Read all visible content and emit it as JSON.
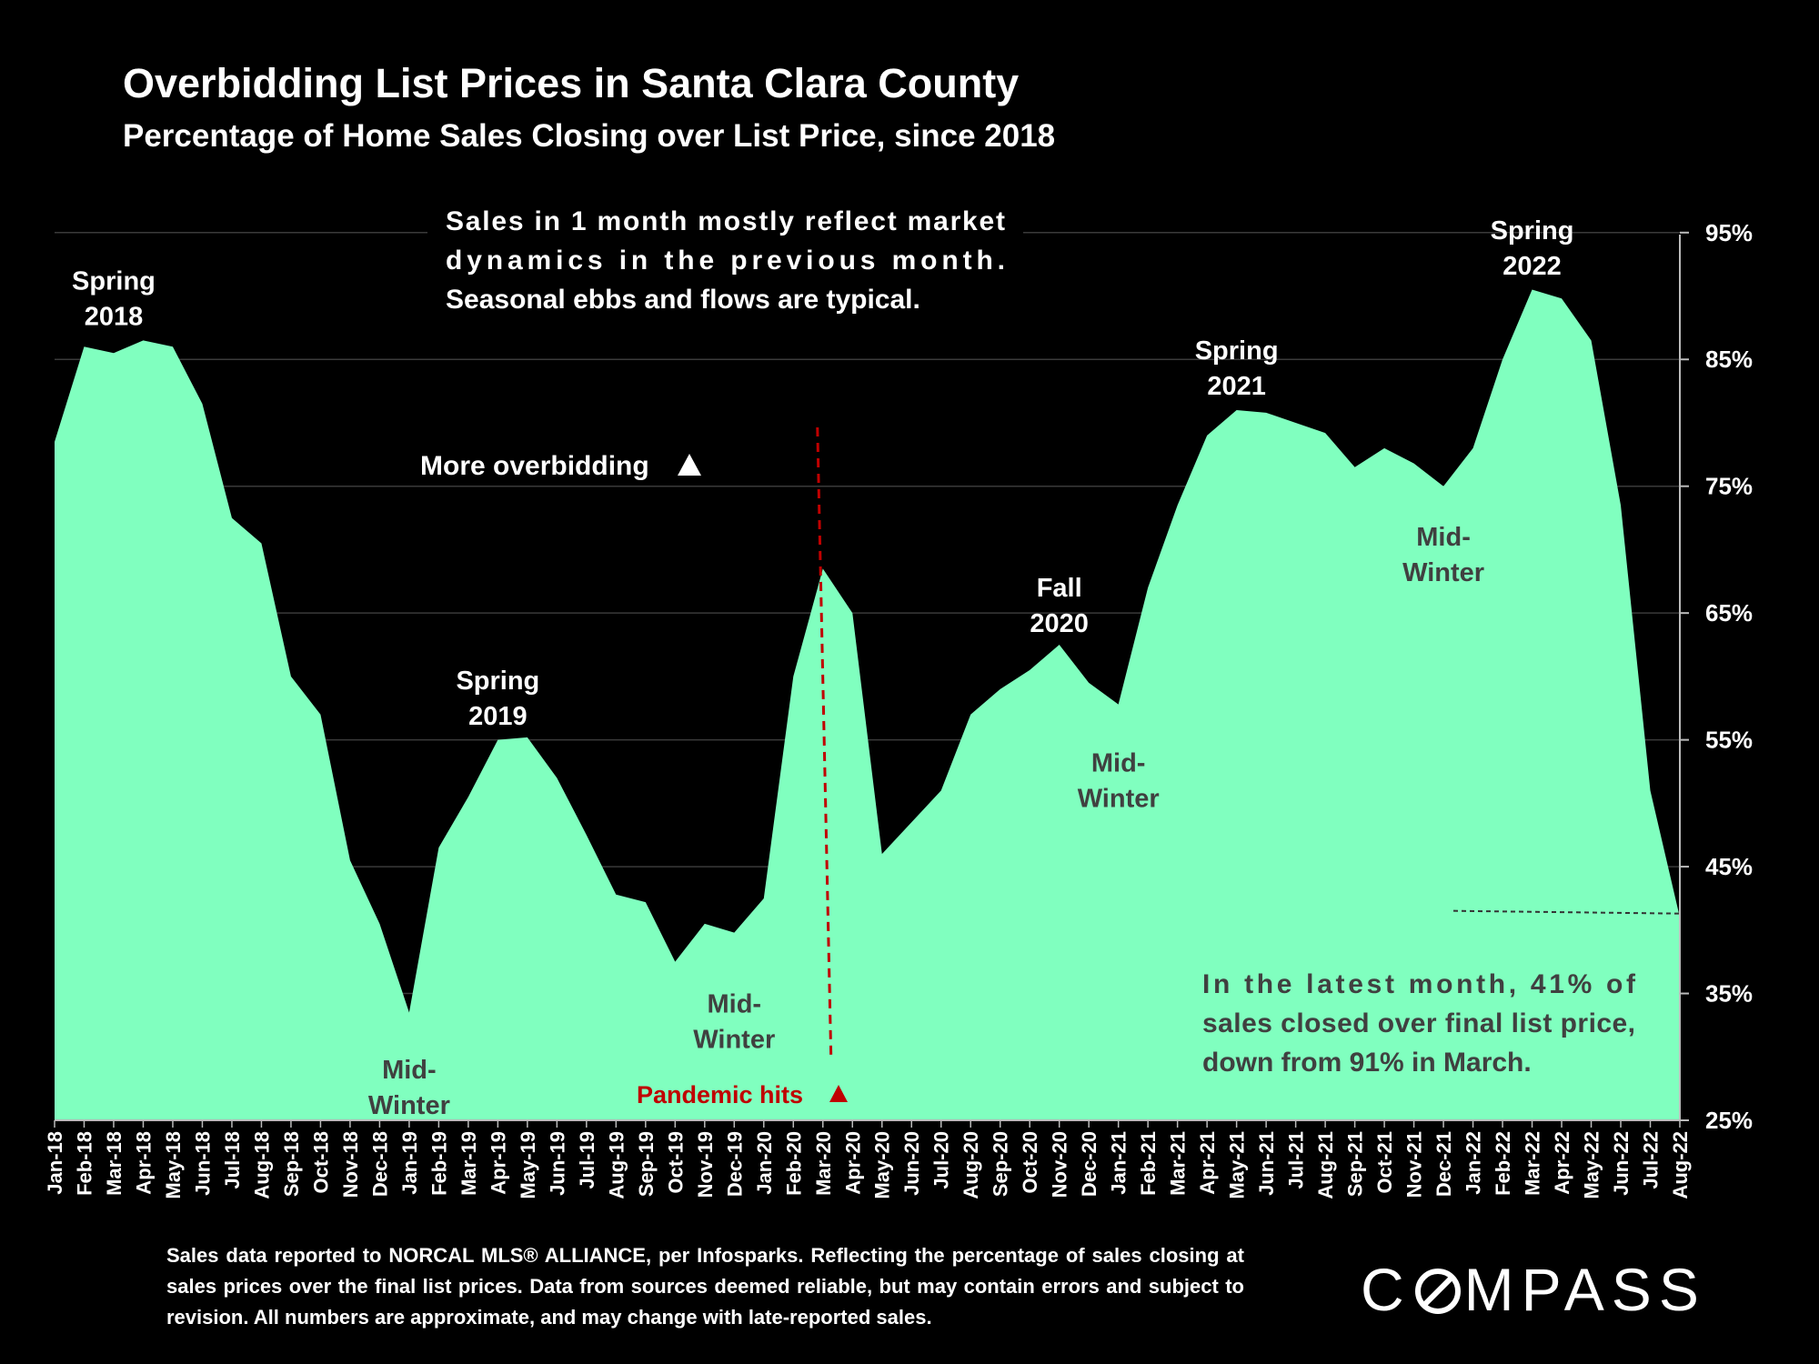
{
  "chart_data": {
    "type": "area",
    "title": "Overbidding List Prices in Santa Clara County",
    "subtitle": "Percentage of Home Sales Closing over List Price, since 2018",
    "x": [
      "Jan-18",
      "Feb-18",
      "Mar-18",
      "Apr-18",
      "May-18",
      "Jun-18",
      "Jul-18",
      "Aug-18",
      "Sep-18",
      "Oct-18",
      "Nov-18",
      "Dec-18",
      "Jan-19",
      "Feb-19",
      "Mar-19",
      "Apr-19",
      "May-19",
      "Jun-19",
      "Jul-19",
      "Aug-19",
      "Sep-19",
      "Oct-19",
      "Nov-19",
      "Dec-19",
      "Jan-20",
      "Feb-20",
      "Mar-20",
      "Apr-20",
      "May-20",
      "Jun-20",
      "Jul-20",
      "Aug-20",
      "Sep-20",
      "Oct-20",
      "Nov-20",
      "Dec-20",
      "Jan-21",
      "Feb-21",
      "Mar-21",
      "Apr-21",
      "May-21",
      "Jun-21",
      "Jul-21",
      "Aug-21",
      "Sep-21",
      "Oct-21",
      "Nov-21",
      "Dec-21",
      "Jan-22",
      "Feb-22",
      "Mar-22",
      "Apr-22",
      "May-22",
      "Jun-22",
      "Jul-22",
      "Aug-22"
    ],
    "series": [
      {
        "values": [
          78.5,
          86,
          85.5,
          86.5,
          86,
          81.5,
          72.5,
          70.5,
          60,
          57,
          45.5,
          40.5,
          33.5,
          46.5,
          50.5,
          55,
          55.2,
          52,
          47.5,
          42.8,
          42.2,
          37.5,
          40.5,
          39.8,
          42.5,
          60,
          68.5,
          65,
          46,
          48.5,
          51,
          57,
          59,
          60.5,
          62.5,
          59.5,
          57.8,
          67,
          73.5,
          79,
          81,
          80.8,
          80,
          79.2,
          76.5,
          78,
          76.8,
          75,
          78,
          85,
          90.5,
          89.8,
          86.5,
          73.5,
          51,
          41
        ]
      }
    ],
    "ylim": [
      25,
      99
    ],
    "y_ticks": [
      25,
      35,
      45,
      55,
      65,
      75,
      85,
      95
    ],
    "y_tick_labels": [
      "25%",
      "35%",
      "45%",
      "55%",
      "65%",
      "75%",
      "85%",
      "95%"
    ],
    "y_axis_position": "right",
    "grid": true,
    "colors": {
      "area": "#80ffbf",
      "background": "#000000",
      "grid": "#3a3a3a",
      "pandemic": "#c00000",
      "text": "#ffffff",
      "mid_winter_text": "#404040"
    },
    "annotations": [
      {
        "id": "spring-2018",
        "lines": [
          "Spring",
          "2018"
        ],
        "x": "Mar-18",
        "y": 90.5,
        "color": "#ffffff"
      },
      {
        "id": "spring-2019",
        "lines": [
          "Spring",
          "2019"
        ],
        "x": "Apr-19",
        "y": 59,
        "color": "#ffffff"
      },
      {
        "id": "fall-2020",
        "lines": [
          "Fall",
          "2020"
        ],
        "x": "Nov-20",
        "y": 66.3,
        "color": "#ffffff"
      },
      {
        "id": "spring-2021",
        "lines": [
          "Spring",
          "2021"
        ],
        "x": "May-21",
        "y": 85,
        "color": "#ffffff"
      },
      {
        "id": "spring-2022",
        "lines": [
          "Spring",
          "2022"
        ],
        "x": "Mar-22",
        "y": 94.5,
        "color": "#ffffff"
      },
      {
        "id": "mid-winter-2019",
        "lines": [
          "Mid-",
          "Winter"
        ],
        "x": "Jan-19",
        "y": 28.3,
        "color": "#404040"
      },
      {
        "id": "mid-winter-2020",
        "lines": [
          "Mid-",
          "Winter"
        ],
        "x": "Dec-19",
        "y": 33.5,
        "color": "#404040"
      },
      {
        "id": "mid-winter-2021",
        "lines": [
          "Mid-",
          "Winter"
        ],
        "x": "Jan-21",
        "y": 52.5,
        "color": "#404040"
      },
      {
        "id": "mid-winter-2022",
        "lines": [
          "Mid-",
          "Winter"
        ],
        "x": "Dec-21",
        "y": 70.3,
        "color": "#404040"
      }
    ],
    "market_note": [
      "Sales in 1 month mostly reflect market",
      "dynamics in the previous month.",
      "Seasonal ebbs and flows are typical."
    ],
    "more_overbidding": "More overbidding",
    "pandemic_label": "Pandemic hits",
    "pandemic_x": "Mar-20",
    "latest_note": [
      "In the latest month, 41% of",
      "sales closed over final list price,",
      "down from 91% in March."
    ],
    "latest_value_line_y": 41.3
  },
  "footnote": "Sales data reported to NORCAL MLS® ALLIANCE, per Infosparks. Reflecting the percentage of sales closing at sales prices over the final list prices. Data from sources deemed reliable, but may contain errors and subject to revision. All numbers are approximate, and may change with late-reported sales.",
  "logo": {
    "pre": "C",
    "post": "MPASS"
  }
}
